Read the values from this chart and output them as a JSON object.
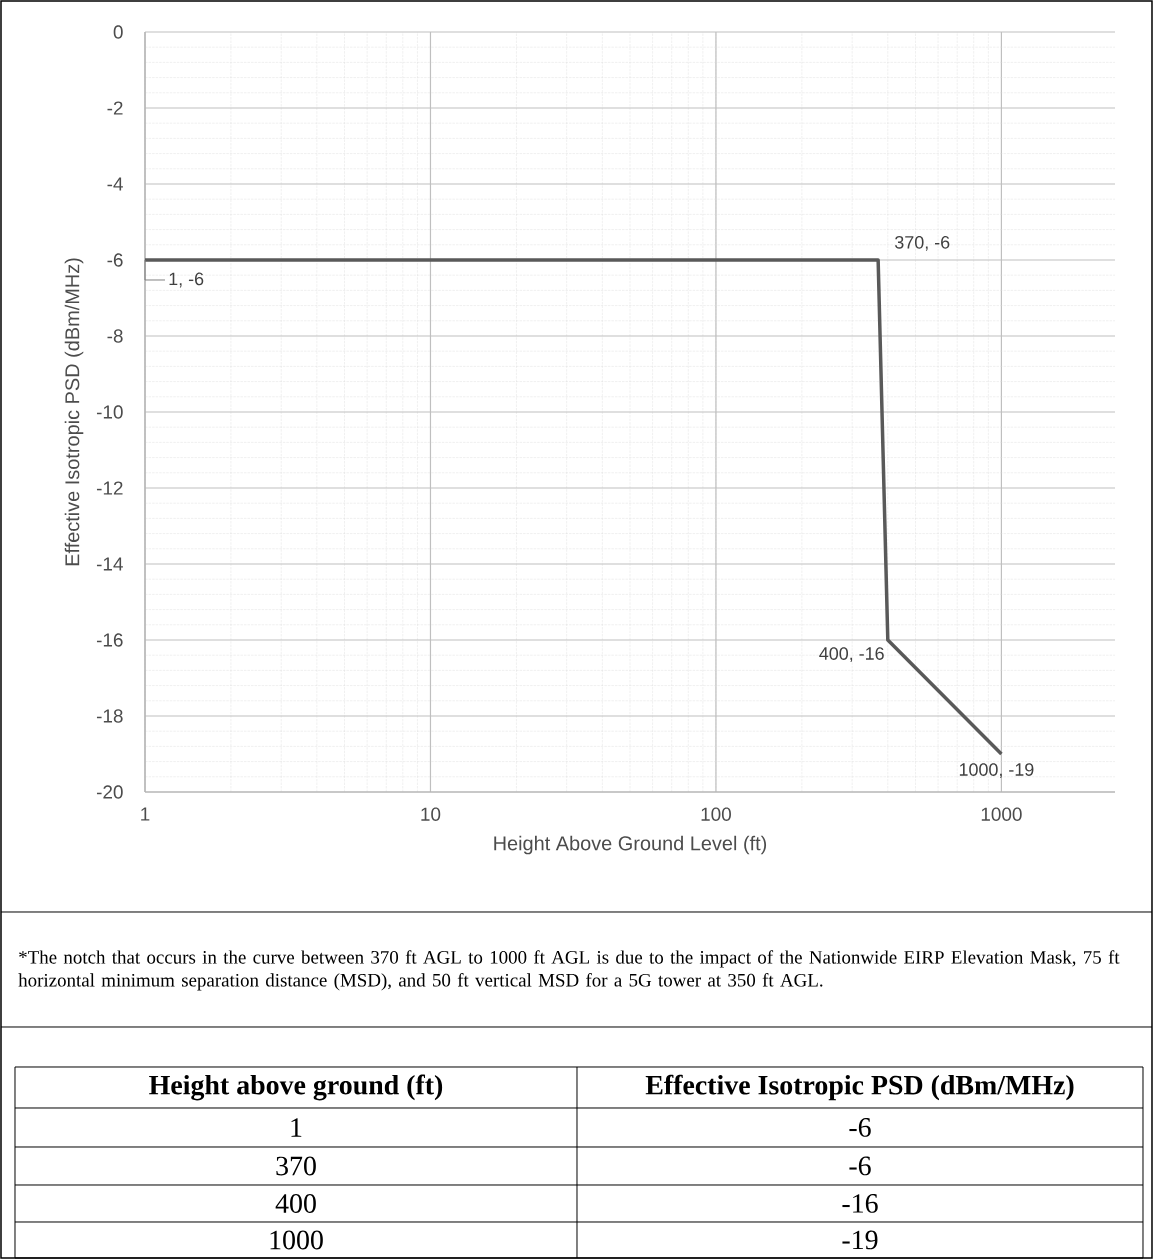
{
  "chart_data": {
    "type": "line",
    "xlabel": "Height Above Ground Level (ft)",
    "ylabel": "Effective Isotropic PSD (dBm/MHz)",
    "x": [
      1,
      370,
      400,
      1000
    ],
    "series": [
      {
        "color": "#595959",
        "values": [
          -6,
          -6,
          -16,
          -19
        ],
        "value_labels": [
          "1, -6",
          "370, -6",
          "400, -16",
          "1000, -19"
        ]
      }
    ],
    "log": "x",
    "xlim": [
      1,
      2500
    ],
    "xticks": [
      1,
      10,
      100,
      1000
    ],
    "ylim": [
      -20,
      0
    ],
    "yticks": [
      -20,
      -18,
      -16,
      -14,
      -12,
      -10,
      -8,
      -6,
      -4,
      -2,
      0
    ],
    "grid": true,
    "marker": "none",
    "line_style": "solid",
    "annotations": [
      "*The notch that occurs in the curve between 370 ft AGL to 1000 ft AGL is due to the impact of the Nationwide EIRP Elevation Mask, 75 ft horizontal minimum separation distance (MSD), and 50 ft vertical MSD for a 5G tower at 350 ft AGL.",
      "Height above ground (ft)",
      "Effective Isotropic PSD (dBm/MHz)",
      "1",
      "-6",
      "370",
      "-6",
      "400",
      "-16",
      "1000",
      "-19"
    ]
  }
}
